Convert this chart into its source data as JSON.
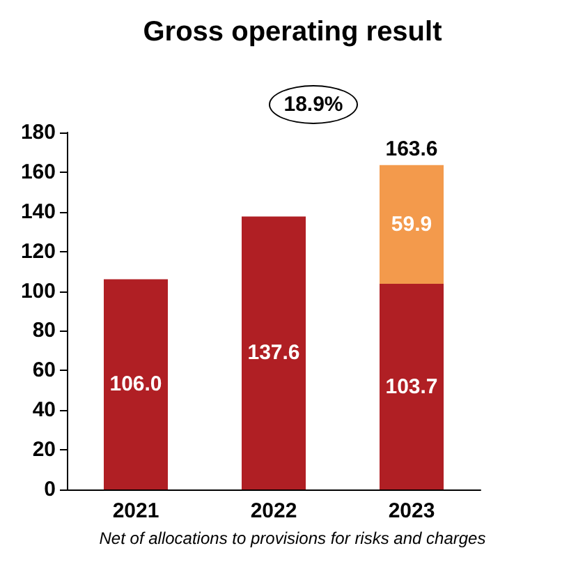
{
  "chart_data": {
    "type": "bar",
    "title": "Gross operating result",
    "categories": [
      "2021",
      "2022",
      "2023"
    ],
    "series": [
      {
        "color": "#b01f24",
        "values": [
          106.0,
          137.6,
          103.7
        ],
        "value_labels": [
          "106.0",
          "137.6",
          "103.7"
        ]
      },
      {
        "color": "#f39a4c",
        "values": [
          null,
          null,
          59.9
        ],
        "value_labels": [
          null,
          null,
          "59.9"
        ]
      }
    ],
    "stacked": true,
    "totals": [
      null,
      null,
      "163.6"
    ],
    "ylim": [
      0,
      180
    ],
    "yticks": [
      0,
      20,
      40,
      60,
      80,
      100,
      120,
      140,
      160,
      180
    ],
    "grid": false,
    "annotations": [
      "18.9%",
      "Net of allocations to provisions for risks and charges"
    ]
  }
}
